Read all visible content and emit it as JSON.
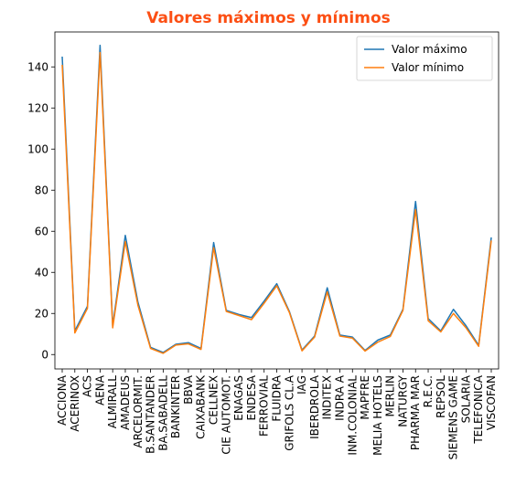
{
  "chart_data": {
    "type": "line",
    "title": "Valores máximos y mínimos",
    "title_color": "#fc4f14",
    "xlabel": "",
    "ylabel": "",
    "ylim": [
      -7,
      157
    ],
    "yticks": [
      0,
      20,
      40,
      60,
      80,
      100,
      120,
      140
    ],
    "grid": false,
    "legend_position": "top-right",
    "categories": [
      "ACCIONA",
      "ACERINOX",
      "ACS",
      "AENA",
      "ALMIRALL",
      "AMADEUS",
      "ARCELORMIT.",
      "B.SANTANDER",
      "BA.SABADELL",
      "BANKINTER",
      "BBVA",
      "CAIXABANK",
      "CELLNEX",
      "CIE AUTOMOT.",
      "ENAGAS",
      "ENDESA",
      "FERROVIAL",
      "FLUIDRA",
      "GRIFOLS CL.A",
      "IAG",
      "IBERDROLA",
      "INDITEX",
      "INDRA A",
      "INM.COLONIAL",
      "MAPFRE",
      "MELIA HOTELS",
      "MERLIN",
      "NATURGY",
      "PHARMA MAR",
      "R.E.C.",
      "REPSOL",
      "SIEMENS GAME",
      "SOLARIA",
      "TELEFONICA",
      "VISCOFAN"
    ],
    "series": [
      {
        "name": "Valor máximo",
        "color": "#1f77b4",
        "values": [
          145,
          11.5,
          23.5,
          150.5,
          14,
          58,
          25.5,
          3.5,
          1,
          5,
          5.8,
          3,
          54.5,
          21.5,
          19.5,
          18,
          26,
          34.5,
          21,
          2.2,
          9,
          32.5,
          9.5,
          8.5,
          2,
          7,
          9.5,
          22,
          74.5,
          17.5,
          11.5,
          22,
          14,
          4.5,
          57
        ]
      },
      {
        "name": "Valor mínimo",
        "color": "#ff7f0e",
        "values": [
          141,
          10.5,
          22.5,
          147,
          13,
          55,
          24,
          3,
          0.6,
          4.6,
          5.2,
          2.5,
          52,
          21,
          19,
          17,
          25,
          33.5,
          20.5,
          1.8,
          8.5,
          30.5,
          9,
          8,
          1.7,
          6,
          8.8,
          21.5,
          70.5,
          16.5,
          11,
          20,
          13,
          4,
          55.5
        ]
      }
    ]
  }
}
